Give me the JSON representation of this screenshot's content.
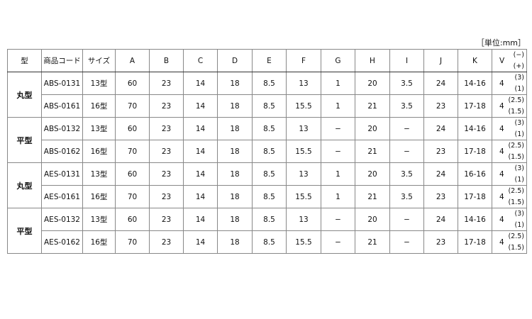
{
  "unit_label": "［単位:mm］",
  "headers": [
    "型",
    "商品コード",
    "サイズ",
    "A",
    "B",
    "C",
    "D",
    "E",
    "F",
    "G",
    "H",
    "I",
    "J",
    "K",
    "V"
  ],
  "header_v_sub": [
    "(−)",
    "(+)"
  ],
  "groups": [
    {
      "type": "丸型",
      "rows": [
        {
          "cells": [
            "ABS-0131",
            "13型",
            "60",
            "23",
            "14",
            "18",
            "8.5",
            "13",
            "1",
            "20",
            "3.5",
            "24",
            "14-16",
            "4"
          ],
          "v_sub": [
            "(3)",
            "(1)"
          ]
        },
        {
          "cells": [
            "ABS-0161",
            "16型",
            "70",
            "23",
            "14",
            "18",
            "8.5",
            "15.5",
            "1",
            "21",
            "3.5",
            "23",
            "17-18",
            "4"
          ],
          "v_sub": [
            "(2.5)",
            "(1.5)"
          ]
        }
      ]
    },
    {
      "type": "平型",
      "rows": [
        {
          "cells": [
            "ABS-0132",
            "13型",
            "60",
            "23",
            "14",
            "18",
            "8.5",
            "13",
            "−",
            "20",
            "−",
            "24",
            "14-16",
            "4"
          ],
          "v_sub": [
            "(3)",
            "(1)"
          ]
        },
        {
          "cells": [
            "ABS-0162",
            "16型",
            "70",
            "23",
            "14",
            "18",
            "8.5",
            "15.5",
            "−",
            "21",
            "−",
            "23",
            "17-18",
            "4"
          ],
          "v_sub": [
            "(2.5)",
            "(1.5)"
          ]
        }
      ]
    },
    {
      "type": "丸型",
      "rows": [
        {
          "cells": [
            "AES-0131",
            "13型",
            "60",
            "23",
            "14",
            "18",
            "8.5",
            "13",
            "1",
            "20",
            "3.5",
            "24",
            "16-16",
            "4"
          ],
          "v_sub": [
            "(3)",
            "(1)"
          ]
        },
        {
          "cells": [
            "AES-0161",
            "16型",
            "70",
            "23",
            "14",
            "18",
            "8.5",
            "15.5",
            "1",
            "21",
            "3.5",
            "23",
            "17-18",
            "4"
          ],
          "v_sub": [
            "(2.5)",
            "(1.5)"
          ]
        }
      ]
    },
    {
      "type": "平型",
      "rows": [
        {
          "cells": [
            "AES-0132",
            "13型",
            "60",
            "23",
            "14",
            "18",
            "8.5",
            "13",
            "−",
            "20",
            "−",
            "24",
            "14-16",
            "4"
          ],
          "v_sub": [
            "(3)",
            "(1)"
          ]
        },
        {
          "cells": [
            "AES-0162",
            "16型",
            "70",
            "23",
            "14",
            "18",
            "8.5",
            "15.5",
            "−",
            "21",
            "−",
            "23",
            "17-18",
            "4"
          ],
          "v_sub": [
            "(2.5)",
            "(1.5)"
          ]
        }
      ]
    }
  ]
}
